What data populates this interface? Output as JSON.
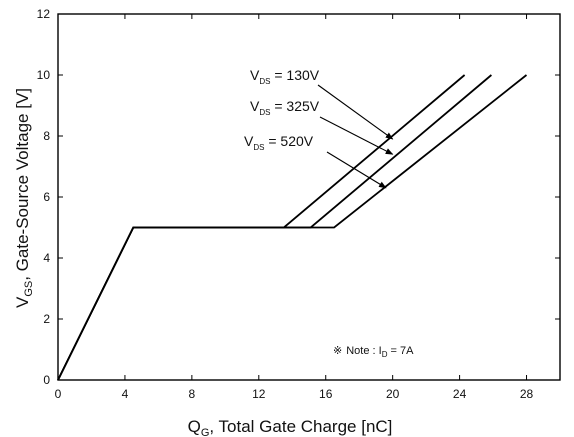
{
  "chart_data": {
    "type": "line",
    "title": "",
    "xlabel": {
      "main": "Q",
      "sub": "G",
      "rest": ", Total Gate Charge [nC]"
    },
    "ylabel": {
      "main": "V",
      "sub": "GS",
      "rest": ", Gate-Source Voltage [V]"
    },
    "xlim": [
      0,
      30
    ],
    "ylim": [
      0,
      12
    ],
    "xticks": [
      0,
      4,
      8,
      12,
      16,
      20,
      24,
      28
    ],
    "yticks": [
      0,
      2,
      4,
      6,
      8,
      10,
      12
    ],
    "grid": false,
    "line_color": "#000000",
    "series": [
      {
        "label_main": "V",
        "label_sub": "DS",
        "label_rest": " = 130V",
        "x": [
          0,
          4.5,
          13.5,
          24.3
        ],
        "y": [
          0,
          5,
          5,
          10
        ]
      },
      {
        "label_main": "V",
        "label_sub": "DS",
        "label_rest": " = 325V",
        "x": [
          0,
          4.5,
          15.1,
          25.9
        ],
        "y": [
          0,
          5,
          5,
          10
        ]
      },
      {
        "label_main": "V",
        "label_sub": "DS",
        "label_rest": " = 520V",
        "x": [
          0,
          4.5,
          16.5,
          28.0
        ],
        "y": [
          0,
          5,
          5,
          10
        ]
      }
    ],
    "annotation_arrow_targets": [
      {
        "x": 20.0,
        "y": 7.9
      },
      {
        "x": 20.0,
        "y": 7.4
      },
      {
        "x": 19.6,
        "y": 6.3
      }
    ],
    "note": {
      "symbol": "※",
      "text_main": "Note : I",
      "text_sub": "D",
      "text_rest": " = 7A"
    }
  }
}
